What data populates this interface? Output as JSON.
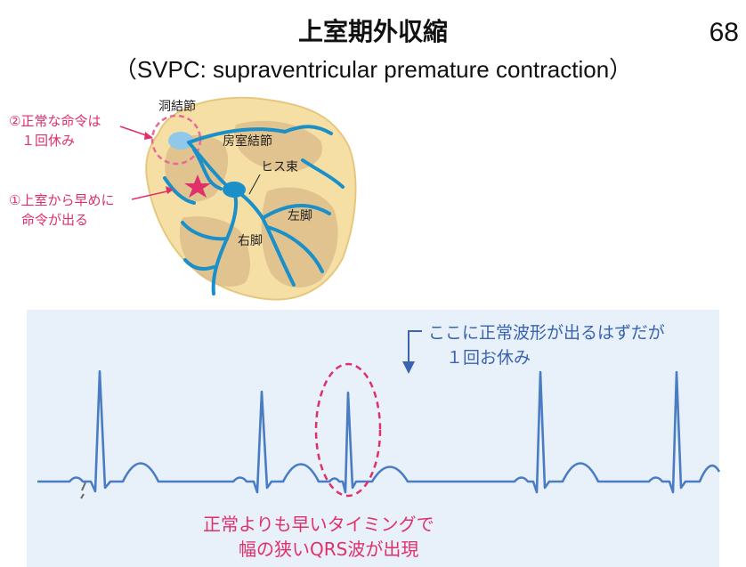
{
  "header": {
    "title": "上室期外収縮",
    "subtitle": "（SVPC: supraventricular premature contraction）",
    "page_number": "68"
  },
  "heart": {
    "sa_node_label": "洞結節",
    "av_node_label": "房室結節",
    "his_label": "ヒス束",
    "left_bundle_label": "左脚",
    "right_bundle_label": "右脚",
    "callout_normal_line1": "②正常な命令は",
    "callout_normal_line2": "１回休み",
    "callout_early_line1": "①上室から早めに",
    "callout_early_line2": "命令が出る"
  },
  "ecg": {
    "note_line1": "ここに正常波形が出るはずだが",
    "note_line2": "１回お休み",
    "caption_line1": "正常よりも早いタイミングで",
    "caption_line2": "幅の狭いQRS波が出現"
  },
  "colors": {
    "ecg_line": "#4a7cc4",
    "accent_pink": "#e0306a",
    "heart_fill": "#f5dfa5",
    "conduction": "#1a8fc8",
    "panel_bg": "#e8f1fa"
  }
}
